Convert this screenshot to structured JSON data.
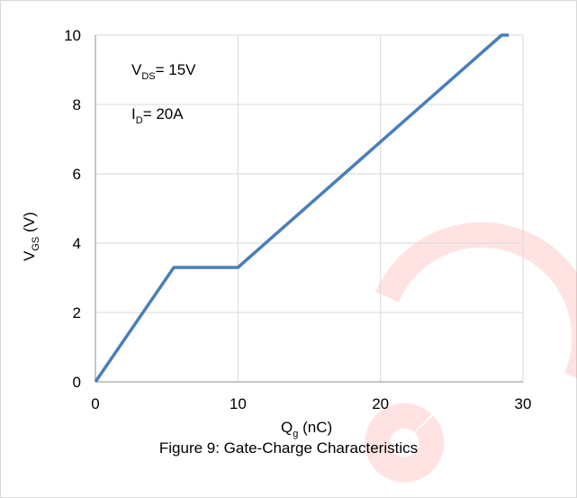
{
  "chart_data": {
    "type": "line",
    "x": [
      0,
      5.5,
      10,
      28.5,
      29
    ],
    "y": [
      0,
      3.3,
      3.3,
      10,
      10
    ],
    "xlim": [
      0,
      30
    ],
    "ylim": [
      0,
      10
    ],
    "xticks": [
      0,
      10,
      20,
      30
    ],
    "yticks": [
      0,
      2,
      4,
      6,
      8,
      10
    ],
    "grid": true,
    "line_color": "#4a7ebb",
    "xlabel": {
      "main": "Q",
      "sub": "g",
      "unit": " (nC)"
    },
    "ylabel": {
      "main": "V",
      "sub": "GS",
      "unit": " (V)"
    },
    "annotations": [
      {
        "main": "V",
        "sub": "DS",
        "rest": "= 15V"
      },
      {
        "main": "I",
        "sub": "D",
        "rest": "= 20A"
      }
    ],
    "caption": "Figure 9: Gate-Charge Characteristics"
  }
}
